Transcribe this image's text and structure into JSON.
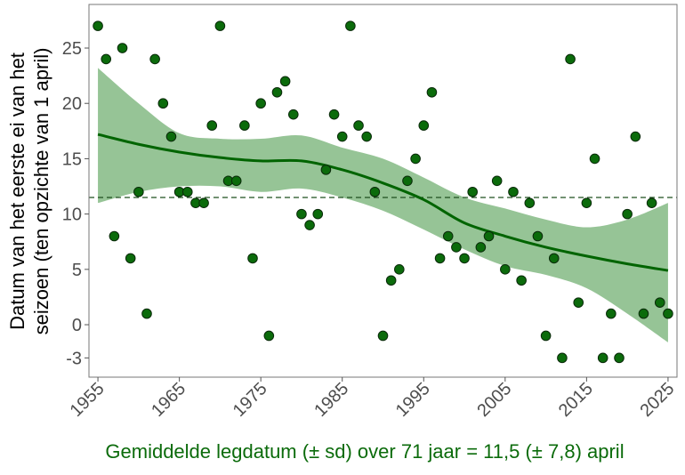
{
  "chart_data": {
    "type": "scatter",
    "title": "",
    "xlabel": "Gemiddelde legdatum (± sd) over 71 jaar = 11,5 (± 7,8) april",
    "ylabel_line1": "Datum van het eerste ei van het",
    "ylabel_line2": "seizoen (ten opzichte van 1 april)",
    "xlim": [
      1953.9,
      2026.1
    ],
    "ylim": [
      -4.74,
      28.94
    ],
    "x_ticks": [
      1955,
      1965,
      1975,
      1985,
      1995,
      2005,
      2015,
      2025
    ],
    "y_ticks": [
      25,
      20,
      15,
      10,
      5,
      0,
      -3
    ],
    "grid": false,
    "mean_line": 11.5,
    "colors": {
      "point": "#0b6b0b",
      "line": "#006400",
      "ribbon": "#96c496",
      "mean": "#1f4f1f",
      "xlabel": "#0b6b0b"
    },
    "x": [
      1955,
      1956,
      1957,
      1958,
      1959,
      1960,
      1961,
      1962,
      1963,
      1964,
      1965,
      1966,
      1967,
      1968,
      1969,
      1970,
      1971,
      1972,
      1973,
      1974,
      1975,
      1976,
      1977,
      1978,
      1979,
      1980,
      1981,
      1982,
      1983,
      1984,
      1985,
      1986,
      1987,
      1988,
      1989,
      1990,
      1991,
      1992,
      1993,
      1994,
      1995,
      1996,
      1997,
      1998,
      1999,
      2000,
      2001,
      2002,
      2003,
      2004,
      2005,
      2006,
      2007,
      2008,
      2009,
      2010,
      2011,
      2012,
      2013,
      2014,
      2015,
      2016,
      2017,
      2018,
      2019,
      2020,
      2021,
      2022,
      2023,
      2024,
      2025
    ],
    "y": [
      27,
      24,
      8,
      25,
      6,
      12,
      1,
      24,
      20,
      17,
      12,
      12,
      11,
      11,
      18,
      27,
      13,
      13,
      18,
      6,
      20,
      -1,
      21,
      22,
      19,
      10,
      9,
      10,
      14,
      19,
      17,
      27,
      18,
      17,
      12,
      -1,
      4,
      5,
      13,
      15,
      18,
      21,
      6,
      8,
      7,
      6,
      12,
      7,
      8,
      13,
      5,
      12,
      4,
      11,
      8,
      -1,
      6,
      -3,
      24,
      2,
      11,
      15,
      -3,
      1,
      -3,
      10,
      17,
      1,
      11,
      2,
      1
    ],
    "smooth": {
      "x": [
        1955,
        1960,
        1965,
        1970,
        1975,
        1980,
        1985,
        1990,
        1995,
        2000,
        2005,
        2010,
        2015,
        2020,
        2025
      ],
      "fit": [
        17.2,
        16.3,
        15.6,
        15.1,
        14.8,
        14.8,
        14.0,
        12.8,
        11.3,
        9.2,
        8.0,
        7.0,
        6.2,
        5.5,
        4.9
      ],
      "upper": [
        23.2,
        20.0,
        17.3,
        16.8,
        16.8,
        17.1,
        16.0,
        15.0,
        13.3,
        11.5,
        10.5,
        9.5,
        8.8,
        9.5,
        11.0
      ],
      "lower": [
        11.0,
        12.0,
        12.5,
        12.5,
        12.0,
        12.3,
        11.5,
        10.3,
        8.6,
        6.8,
        5.3,
        4.5,
        3.3,
        1.0,
        -1.6
      ]
    }
  }
}
